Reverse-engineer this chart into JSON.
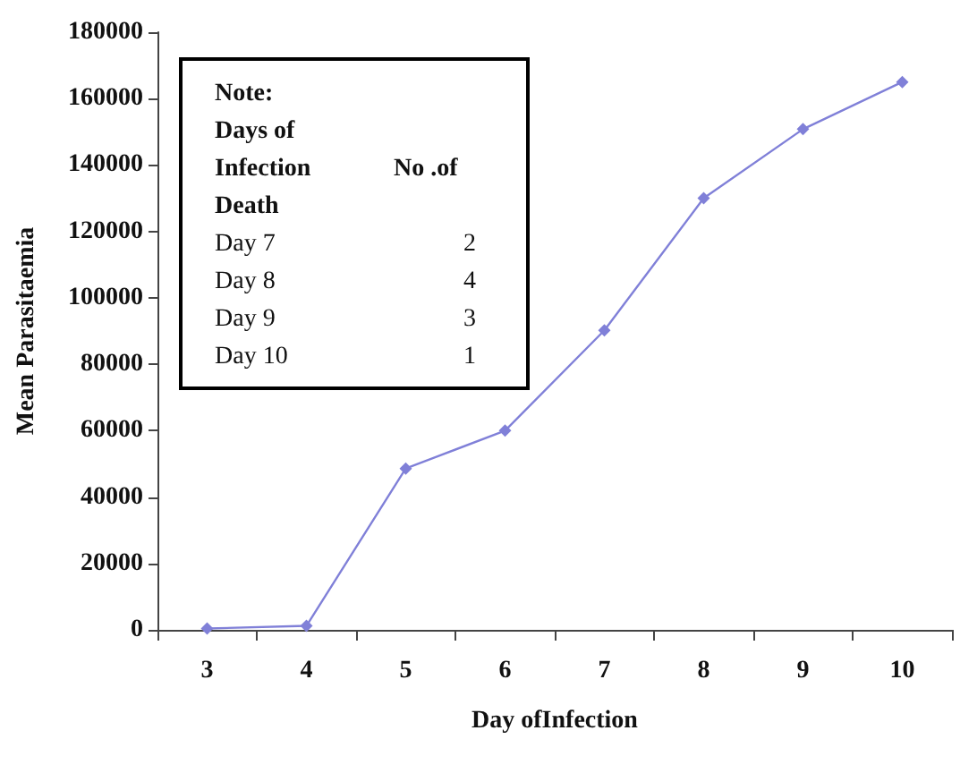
{
  "chart_data": {
    "type": "line",
    "xlabel": "Day ofInfection",
    "ylabel": "Mean Parasitaemia",
    "categories": [
      "3",
      "4",
      "5",
      "6",
      "7",
      "8",
      "9",
      "10"
    ],
    "series": [
      {
        "color": "#8080d8",
        "values": [
          400,
          1200,
          48600,
          60000,
          90200,
          130000,
          150800,
          165000
        ]
      }
    ],
    "ylim": [
      0,
      180000
    ],
    "yticks": [
      0,
      20000,
      40000,
      60000,
      80000,
      100000,
      120000,
      140000,
      160000,
      180000
    ],
    "grid": false,
    "marker": "diamond",
    "line_style": "solid",
    "annotations": [
      "Note:",
      "Days of Infection Death",
      "No .of",
      "Day 7",
      "2",
      "Day 8",
      "4",
      "Day 9",
      "3",
      "Day 10",
      "1"
    ]
  }
}
